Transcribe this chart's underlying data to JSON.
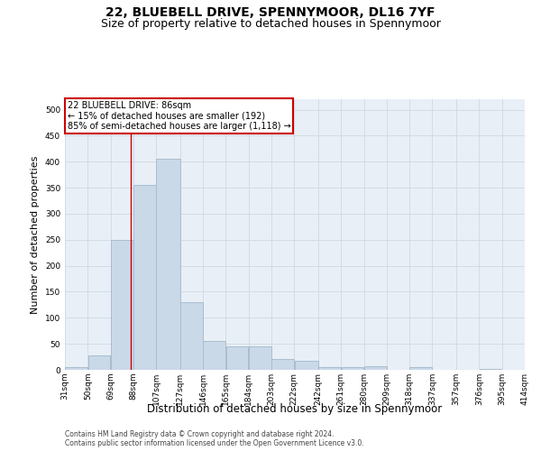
{
  "title1": "22, BLUEBELL DRIVE, SPENNYMOOR, DL16 7YF",
  "title2": "Size of property relative to detached houses in Spennymoor",
  "xlabel": "Distribution of detached houses by size in Spennymoor",
  "ylabel": "Number of detached properties",
  "footer1": "Contains HM Land Registry data © Crown copyright and database right 2024.",
  "footer2": "Contains public sector information licensed under the Open Government Licence v3.0.",
  "bin_edges": [
    31,
    50,
    69,
    88,
    107,
    127,
    146,
    165,
    184,
    203,
    222,
    242,
    261,
    280,
    299,
    318,
    337,
    357,
    376,
    395,
    414
  ],
  "bar_heights": [
    5,
    27,
    250,
    355,
    405,
    130,
    55,
    45,
    45,
    20,
    17,
    5,
    5,
    7,
    0,
    5,
    0,
    0,
    2,
    0,
    2
  ],
  "bar_color": "#c9d9e8",
  "bar_edge_color": "#aabdcf",
  "red_line_x": 86,
  "annotation_line1": "22 BLUEBELL DRIVE: 86sqm",
  "annotation_line2": "← 15% of detached houses are smaller (192)",
  "annotation_line3": "85% of semi-detached houses are larger (1,118) →",
  "annotation_box_color": "#ffffff",
  "annotation_box_edge_color": "#cc0000",
  "ylim": [
    0,
    520
  ],
  "yticks": [
    0,
    50,
    100,
    150,
    200,
    250,
    300,
    350,
    400,
    450,
    500
  ],
  "grid_color": "#d0d8e0",
  "bg_color": "#e8eff7",
  "title1_fontsize": 10,
  "title2_fontsize": 9,
  "xlabel_fontsize": 8.5,
  "ylabel_fontsize": 8,
  "tick_fontsize": 6.5,
  "annotation_fontsize": 7,
  "footer_fontsize": 5.5
}
